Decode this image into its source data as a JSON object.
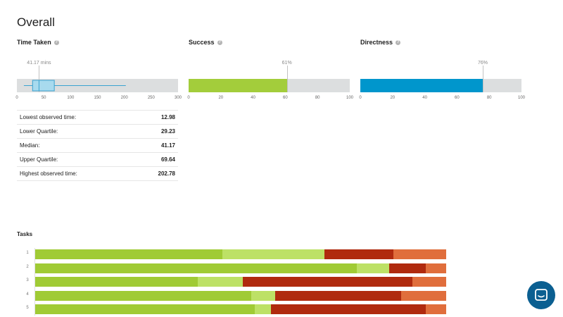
{
  "page_title": "Overall",
  "colors": {
    "success_fill": "#a3cd3b",
    "directness_fill": "#0096cc",
    "box_fill": "#a8daee",
    "box_stroke": "#3aa3d0",
    "direct_success": "#a0cb35",
    "indirect_success": "#bde166",
    "direct_fail": "#b02a0e",
    "indirect_fail": "#e06e3c",
    "chat_button": "#0b5f91"
  },
  "time_taken": {
    "label": "Time Taken",
    "help_icon": "question-circle-icon",
    "marker_label": "41.17 mins",
    "ticks": [
      "0",
      "50",
      "100",
      "150",
      "200",
      "250",
      "300"
    ],
    "domain": [
      0,
      300
    ],
    "box": {
      "min": 12.98,
      "q1": 29.23,
      "median": 41.17,
      "q3": 69.64,
      "max": 202.78
    }
  },
  "success": {
    "label": "Success",
    "help_icon": "question-circle-icon",
    "value_label": "61%",
    "value": 61,
    "ticks": [
      "0",
      "20",
      "40",
      "60",
      "80",
      "100"
    ]
  },
  "directness": {
    "label": "Directness",
    "help_icon": "question-circle-icon",
    "value_label": "76%",
    "value": 76,
    "ticks": [
      "0",
      "20",
      "40",
      "60",
      "80",
      "100"
    ]
  },
  "stats": [
    {
      "label": "Lowest observed time:",
      "value": "12.98"
    },
    {
      "label": "Lower Quartile:",
      "value": "29.23"
    },
    {
      "label": "Median:",
      "value": "41.17"
    },
    {
      "label": "Upper Quartile:",
      "value": "69.64"
    },
    {
      "label": "Highest observed time:",
      "value": "202.78"
    }
  ],
  "tasks": {
    "label": "Tasks",
    "rows": [
      {
        "num": "1",
        "segments": [
          45.5,
          24.8,
          16.8,
          12.9
        ]
      },
      {
        "num": "2",
        "segments": [
          78.2,
          7.9,
          8.9,
          5.0
        ]
      },
      {
        "num": "3",
        "segments": [
          39.6,
          10.9,
          41.3,
          8.2
        ]
      },
      {
        "num": "4",
        "segments": [
          52.5,
          5.9,
          30.7,
          10.9
        ]
      },
      {
        "num": "5",
        "segments": [
          53.5,
          3.9,
          37.6,
          5.0
        ]
      }
    ]
  },
  "chat_icon": "chat-bubble-icon"
}
